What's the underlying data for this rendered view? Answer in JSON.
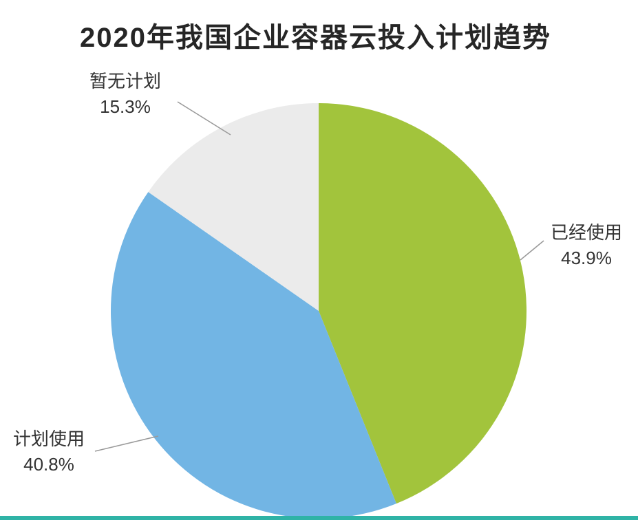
{
  "chart_data": {
    "type": "pie",
    "title": "2020年我国企业容器云投入计划趋势",
    "start_angle_deg": -90,
    "direction": "clockwise",
    "legend_position": "callout-labels",
    "slices": [
      {
        "label": "已经使用",
        "value": 43.9,
        "display": "43.9%",
        "color": "#a2c43c"
      },
      {
        "label": "计划使用",
        "value": 40.8,
        "display": "40.8%",
        "color": "#72b5e4"
      },
      {
        "label": "暂无计划",
        "value": 15.3,
        "display": "15.3%",
        "color": "#ebebeb"
      }
    ]
  },
  "colors": {
    "leader_line": "#9a9a9a",
    "footer_bar": "#2fb3a6",
    "title_text": "#262626",
    "label_text": "#333333"
  }
}
